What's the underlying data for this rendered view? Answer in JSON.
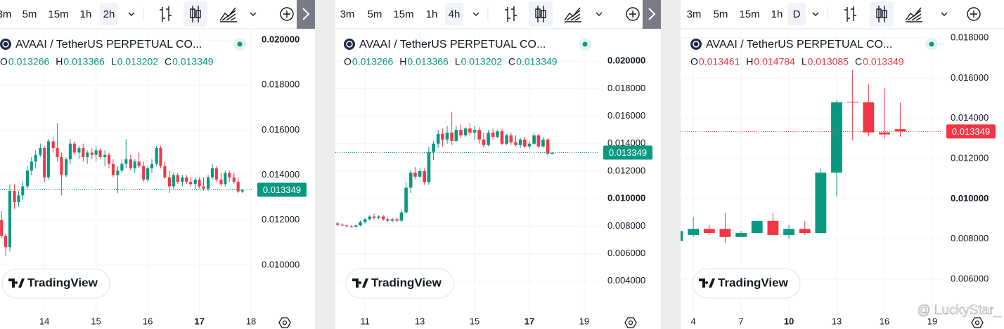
{
  "chart_data": [
    {
      "type": "candlestick",
      "title": "AVAAI / TetherUS PERPETUAL CO...",
      "intervals": [
        "3m",
        "5m",
        "15m",
        "1h",
        "2h"
      ],
      "active_interval": 4,
      "ohlc_legend": {
        "labels": [
          "O",
          "H",
          "L",
          "C"
        ],
        "values": [
          "0.013266",
          "0.013366",
          "0.013202",
          "0.013349"
        ]
      },
      "branding": "TradingView",
      "up_color": "#089981",
      "down_color": "#f23645",
      "grid": true,
      "last_price": 0.013349,
      "xlim": [
        13.14,
        18.04
      ],
      "ylim": [
        0.00791,
        0.02047
      ],
      "xticks": [
        14,
        15,
        16,
        {
          "value": 17,
          "label": "17",
          "bold": true
        },
        18
      ],
      "yticks": [
        {
          "value": 0.02,
          "label": "0.020000",
          "bold": true
        },
        {
          "value": 0.018,
          "label": "0.018000"
        },
        {
          "value": 0.016,
          "label": "0.016000"
        },
        {
          "value": 0.014,
          "label": "0.014000"
        },
        {
          "value": 0.012,
          "label": "0.012000"
        },
        {
          "value": 0.01,
          "label": "0.010000"
        }
      ],
      "x": [
        13.17,
        13.25,
        13.33,
        13.42,
        13.5,
        13.58,
        13.67,
        13.75,
        13.83,
        13.92,
        14,
        14.08,
        14.17,
        14.25,
        14.33,
        14.42,
        14.5,
        14.58,
        14.67,
        14.75,
        14.83,
        14.92,
        15,
        15.08,
        15.17,
        15.25,
        15.33,
        15.42,
        15.5,
        15.58,
        15.67,
        15.75,
        15.83,
        15.92,
        16,
        16.08,
        16.17,
        16.25,
        16.33,
        16.42,
        16.5,
        16.58,
        16.67,
        16.75,
        16.83,
        16.92,
        17,
        17.08,
        17.17,
        17.25,
        17.33,
        17.42,
        17.5,
        17.58,
        17.67,
        17.75,
        17.83
      ],
      "open": [
        0.012,
        0.0113,
        0.0108,
        0.0133,
        0.0128,
        0.0131,
        0.0135,
        0.0142,
        0.0146,
        0.0149,
        0.0152,
        0.0139,
        0.0155,
        0.0152,
        0.0148,
        0.014,
        0.0147,
        0.0154,
        0.015,
        0.0152,
        0.0148,
        0.015,
        0.0149,
        0.0151,
        0.0148,
        0.0149,
        0.0145,
        0.014,
        0.0142,
        0.0145,
        0.0147,
        0.0143,
        0.0146,
        0.0144,
        0.0138,
        0.0143,
        0.0145,
        0.0152,
        0.0144,
        0.0139,
        0.0135,
        0.014,
        0.0137,
        0.0139,
        0.0137,
        0.0136,
        0.0138,
        0.0135,
        0.0134,
        0.0139,
        0.0143,
        0.0138,
        0.0136,
        0.0141,
        0.0139,
        0.0137,
        0.013266
      ],
      "high": [
        0.0124,
        0.0114,
        0.0136,
        0.0136,
        0.0133,
        0.0137,
        0.0144,
        0.0148,
        0.0151,
        0.0154,
        0.0153,
        0.0156,
        0.0157,
        0.0163,
        0.015,
        0.0148,
        0.0156,
        0.0155,
        0.0153,
        0.0154,
        0.0151,
        0.0152,
        0.0153,
        0.0152,
        0.0151,
        0.015,
        0.0147,
        0.0144,
        0.0147,
        0.0156,
        0.0149,
        0.0147,
        0.015,
        0.0146,
        0.0144,
        0.0147,
        0.0153,
        0.0153,
        0.0146,
        0.0142,
        0.0141,
        0.0141,
        0.014,
        0.014,
        0.0139,
        0.0139,
        0.0139,
        0.0139,
        0.014,
        0.0145,
        0.0144,
        0.0141,
        0.0142,
        0.0142,
        0.0141,
        0.0139,
        0.013366
      ],
      "low": [
        0.0112,
        0.0104,
        0.0106,
        0.0125,
        0.0126,
        0.0129,
        0.0134,
        0.014,
        0.0143,
        0.0148,
        0.0137,
        0.0138,
        0.015,
        0.0146,
        0.0131,
        0.0139,
        0.0145,
        0.0149,
        0.0147,
        0.0146,
        0.0145,
        0.0147,
        0.0146,
        0.0147,
        0.0144,
        0.0143,
        0.0139,
        0.0132,
        0.0141,
        0.0143,
        0.0142,
        0.0141,
        0.0143,
        0.0137,
        0.0137,
        0.0141,
        0.0144,
        0.0143,
        0.0138,
        0.0132,
        0.0134,
        0.0136,
        0.0135,
        0.0136,
        0.0135,
        0.0134,
        0.0134,
        0.0133,
        0.0133,
        0.0138,
        0.0137,
        0.0135,
        0.0135,
        0.0137,
        0.0136,
        0.0132,
        0.013202
      ],
      "close": [
        0.0113,
        0.0108,
        0.0133,
        0.0128,
        0.0131,
        0.0135,
        0.0142,
        0.0146,
        0.0149,
        0.0152,
        0.0139,
        0.0155,
        0.0152,
        0.0148,
        0.014,
        0.0147,
        0.0154,
        0.015,
        0.0152,
        0.0148,
        0.015,
        0.0149,
        0.0151,
        0.0148,
        0.0149,
        0.0145,
        0.014,
        0.0142,
        0.0145,
        0.0147,
        0.0143,
        0.0146,
        0.0144,
        0.0138,
        0.0143,
        0.0145,
        0.0152,
        0.0144,
        0.0139,
        0.0135,
        0.014,
        0.0137,
        0.0139,
        0.0137,
        0.0136,
        0.0138,
        0.0135,
        0.0134,
        0.0139,
        0.0143,
        0.0138,
        0.0136,
        0.0141,
        0.0139,
        0.0137,
        0.013266,
        0.013349
      ]
    },
    {
      "type": "candlestick",
      "title": "AVAAI / TetherUS PERPETUAL CO...",
      "intervals": [
        "3m",
        "5m",
        "15m",
        "1h",
        "4h"
      ],
      "active_interval": 4,
      "ohlc_legend": {
        "labels": [
          "O",
          "H",
          "L",
          "C"
        ],
        "values": [
          "0.013266",
          "0.013366",
          "0.013202",
          "0.013349"
        ]
      },
      "branding": "TradingView",
      "up_color": "#089981",
      "down_color": "#f23645",
      "grid": true,
      "last_price": 0.013349,
      "xlim": [
        9.92,
        19.54
      ],
      "ylim": [
        0.00174,
        0.02231
      ],
      "xticks": [
        11,
        13,
        15,
        {
          "value": 17,
          "label": "17",
          "bold": true
        },
        19
      ],
      "yticks": [
        {
          "value": 0.02,
          "label": "0.020000",
          "bold": true
        },
        {
          "value": 0.018,
          "label": "0.018000"
        },
        {
          "value": 0.016,
          "label": "0.016000"
        },
        {
          "value": 0.014,
          "label": "0.014000"
        },
        {
          "value": 0.012,
          "label": "0.012000"
        },
        {
          "value": 0.01,
          "label": "0.010000",
          "bold": true
        },
        {
          "value": 0.008,
          "label": "0.008000"
        },
        {
          "value": 0.006,
          "label": "0.006000"
        },
        {
          "value": 0.004,
          "label": "0.004000"
        }
      ],
      "x": [
        10,
        10.17,
        10.33,
        10.5,
        10.67,
        10.83,
        11,
        11.17,
        11.33,
        11.5,
        11.67,
        11.83,
        12,
        12.17,
        12.33,
        12.5,
        12.67,
        12.83,
        13,
        13.17,
        13.33,
        13.5,
        13.67,
        13.83,
        14,
        14.17,
        14.33,
        14.5,
        14.67,
        14.83,
        15,
        15.17,
        15.33,
        15.5,
        15.67,
        15.83,
        16,
        16.17,
        16.33,
        16.5,
        16.67,
        16.83,
        17,
        17.17,
        17.33,
        17.5,
        17.67,
        17.83
      ],
      "open": [
        0.0082,
        0.0081,
        0.00805,
        0.008,
        0.00795,
        0.00805,
        0.0083,
        0.0085,
        0.0087,
        0.0086,
        0.0087,
        0.0085,
        0.0084,
        0.0085,
        0.0084,
        0.009,
        0.0108,
        0.0119,
        0.0116,
        0.012,
        0.0112,
        0.0134,
        0.014,
        0.0147,
        0.0143,
        0.0148,
        0.0142,
        0.015,
        0.0146,
        0.0151,
        0.0148,
        0.015,
        0.0143,
        0.0139,
        0.0148,
        0.0145,
        0.0149,
        0.014,
        0.0146,
        0.0141,
        0.0139,
        0.0143,
        0.0138,
        0.014,
        0.0146,
        0.0138,
        0.0143,
        0.013266
      ],
      "high": [
        0.0083,
        0.0082,
        0.0081,
        0.0081,
        0.0081,
        0.0084,
        0.0086,
        0.0088,
        0.0089,
        0.0088,
        0.0088,
        0.0086,
        0.0086,
        0.0086,
        0.0092,
        0.0112,
        0.0121,
        0.0123,
        0.0122,
        0.0122,
        0.0138,
        0.0142,
        0.015,
        0.0151,
        0.0153,
        0.0163,
        0.0153,
        0.0154,
        0.0152,
        0.0155,
        0.0153,
        0.0152,
        0.0148,
        0.015,
        0.0151,
        0.015,
        0.0151,
        0.0147,
        0.0148,
        0.0146,
        0.0144,
        0.0145,
        0.0142,
        0.0148,
        0.0147,
        0.0145,
        0.0144,
        0.013366
      ],
      "low": [
        0.008,
        0.008,
        0.0079,
        0.0079,
        0.0079,
        0.008,
        0.0082,
        0.0084,
        0.0085,
        0.0085,
        0.0084,
        0.0083,
        0.0083,
        0.0083,
        0.0083,
        0.0089,
        0.0104,
        0.0114,
        0.0115,
        0.011,
        0.011,
        0.0128,
        0.0137,
        0.0138,
        0.014,
        0.0139,
        0.0141,
        0.0144,
        0.0145,
        0.0146,
        0.0143,
        0.014,
        0.0137,
        0.0138,
        0.0143,
        0.0144,
        0.0139,
        0.0139,
        0.0139,
        0.0138,
        0.0137,
        0.0137,
        0.0136,
        0.0139,
        0.0137,
        0.0137,
        0.0132,
        0.013202
      ],
      "close": [
        0.0081,
        0.00805,
        0.008,
        0.00795,
        0.00805,
        0.0083,
        0.0085,
        0.0087,
        0.0086,
        0.0087,
        0.0085,
        0.0084,
        0.0085,
        0.0084,
        0.009,
        0.0108,
        0.0119,
        0.0116,
        0.012,
        0.0112,
        0.0134,
        0.014,
        0.0147,
        0.0143,
        0.0148,
        0.0142,
        0.015,
        0.0146,
        0.0151,
        0.0148,
        0.015,
        0.0143,
        0.0139,
        0.0148,
        0.0145,
        0.0149,
        0.014,
        0.0146,
        0.0141,
        0.0139,
        0.0143,
        0.0138,
        0.014,
        0.0146,
        0.0138,
        0.0143,
        0.013266,
        0.013349
      ]
    },
    {
      "type": "candlestick",
      "title": "AVAAI / TetherUS PERPETUAL CO...",
      "intervals": [
        "3m",
        "5m",
        "15m",
        "1h",
        "D"
      ],
      "active_interval": 4,
      "ohlc_legend": {
        "labels": [
          "O",
          "H",
          "L",
          "C"
        ],
        "values": [
          "0.013461",
          "0.014784",
          "0.013085",
          "0.013349"
        ]
      },
      "branding": "TradingView",
      "up_color": "#089981",
      "down_color": "#f23645",
      "grid": true,
      "last_price": 0.013349,
      "xlim": [
        3.2,
        19.62
      ],
      "ylim": [
        0.00436,
        0.01842
      ],
      "xticks": [
        4,
        7,
        {
          "value": 10,
          "label": "10",
          "bold": true
        },
        13,
        16,
        19
      ],
      "yticks": [
        {
          "value": 0.018,
          "label": "0.018000"
        },
        {
          "value": 0.016,
          "label": "0.016000"
        },
        {
          "value": 0.014,
          "label": "0.014000"
        },
        {
          "value": 0.012,
          "label": "0.012000"
        },
        {
          "value": 0.01,
          "label": "0.010000",
          "bold": true
        },
        {
          "value": 0.008,
          "label": "0.008000"
        },
        {
          "value": 0.006,
          "label": "0.006000"
        }
      ],
      "x": [
        3,
        4,
        5,
        6,
        7,
        8,
        9,
        10,
        11,
        12,
        13,
        14,
        15,
        16,
        17
      ],
      "open": [
        0.0079,
        0.0082,
        0.0085,
        0.0085,
        0.0081,
        0.0083,
        0.0089,
        0.0082,
        0.0085,
        0.0083,
        0.0113,
        0.01482,
        0.0148,
        0.0133,
        0.013461
      ],
      "high": [
        0.0084,
        0.0091,
        0.0087,
        0.0093,
        0.0084,
        0.0089,
        0.0093,
        0.0087,
        0.0089,
        0.0115,
        0.0149,
        0.0164,
        0.0157,
        0.0155,
        0.014784
      ],
      "low": [
        0.0078,
        0.0081,
        0.0082,
        0.0078,
        0.0081,
        0.0083,
        0.0082,
        0.008,
        0.0082,
        0.0083,
        0.0101,
        0.0129,
        0.0131,
        0.013,
        0.013085
      ],
      "close": [
        0.0084,
        0.0085,
        0.0083,
        0.0081,
        0.0083,
        0.0089,
        0.0082,
        0.0085,
        0.0083,
        0.0113,
        0.0148,
        0.0148,
        0.0133,
        0.0132,
        0.013349
      ]
    }
  ],
  "watermark": "@ LuckyStar_"
}
